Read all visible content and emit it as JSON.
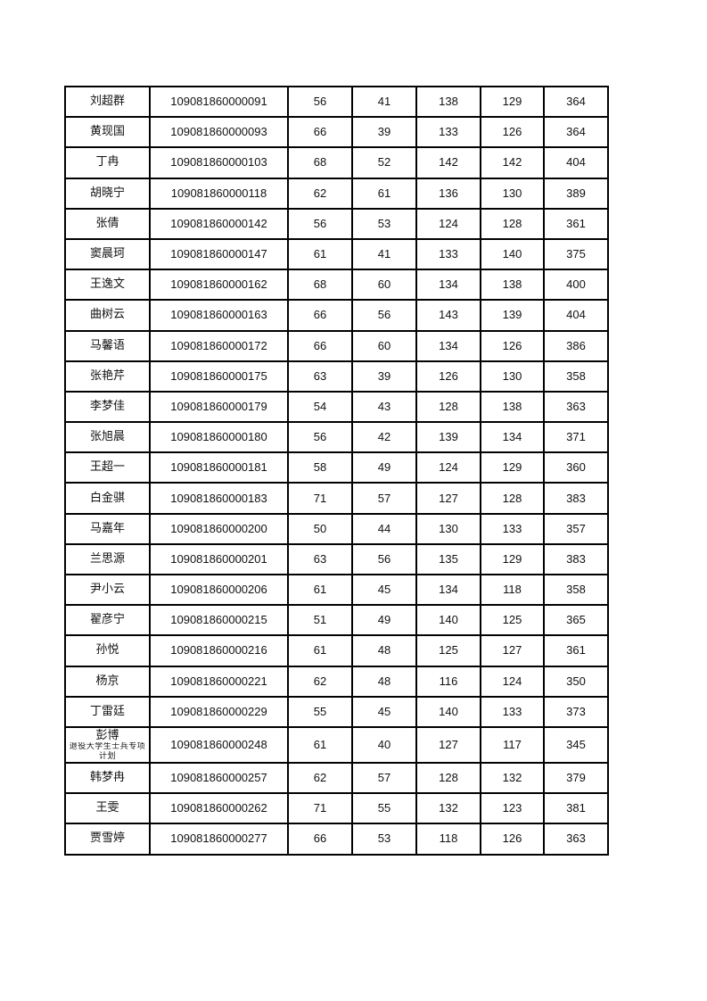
{
  "table": {
    "rows": [
      {
        "name": "刘超群",
        "id": "109081860000091",
        "s1": "56",
        "s2": "41",
        "s3": "138",
        "s4": "129",
        "total": "364"
      },
      {
        "name": "黄现国",
        "id": "109081860000093",
        "s1": "66",
        "s2": "39",
        "s3": "133",
        "s4": "126",
        "total": "364"
      },
      {
        "name": "丁冉",
        "id": "109081860000103",
        "s1": "68",
        "s2": "52",
        "s3": "142",
        "s4": "142",
        "total": "404"
      },
      {
        "name": "胡晓宁",
        "id": "109081860000118",
        "s1": "62",
        "s2": "61",
        "s3": "136",
        "s4": "130",
        "total": "389"
      },
      {
        "name": "张倩",
        "id": "109081860000142",
        "s1": "56",
        "s2": "53",
        "s3": "124",
        "s4": "128",
        "total": "361"
      },
      {
        "name": "窦晨珂",
        "id": "109081860000147",
        "s1": "61",
        "s2": "41",
        "s3": "133",
        "s4": "140",
        "total": "375"
      },
      {
        "name": "王逸文",
        "id": "109081860000162",
        "s1": "68",
        "s2": "60",
        "s3": "134",
        "s4": "138",
        "total": "400"
      },
      {
        "name": "曲树云",
        "id": "109081860000163",
        "s1": "66",
        "s2": "56",
        "s3": "143",
        "s4": "139",
        "total": "404"
      },
      {
        "name": "马馨语",
        "id": "109081860000172",
        "s1": "66",
        "s2": "60",
        "s3": "134",
        "s4": "126",
        "total": "386"
      },
      {
        "name": "张艳芹",
        "id": "109081860000175",
        "s1": "63",
        "s2": "39",
        "s3": "126",
        "s4": "130",
        "total": "358"
      },
      {
        "name": "李梦佳",
        "id": "109081860000179",
        "s1": "54",
        "s2": "43",
        "s3": "128",
        "s4": "138",
        "total": "363"
      },
      {
        "name": "张旭晨",
        "id": "109081860000180",
        "s1": "56",
        "s2": "42",
        "s3": "139",
        "s4": "134",
        "total": "371"
      },
      {
        "name": "王超一",
        "id": "109081860000181",
        "s1": "58",
        "s2": "49",
        "s3": "124",
        "s4": "129",
        "total": "360"
      },
      {
        "name": "白金骐",
        "id": "109081860000183",
        "s1": "71",
        "s2": "57",
        "s3": "127",
        "s4": "128",
        "total": "383"
      },
      {
        "name": "马嘉年",
        "id": "109081860000200",
        "s1": "50",
        "s2": "44",
        "s3": "130",
        "s4": "133",
        "total": "357"
      },
      {
        "name": "兰思源",
        "id": "109081860000201",
        "s1": "63",
        "s2": "56",
        "s3": "135",
        "s4": "129",
        "total": "383"
      },
      {
        "name": "尹小云",
        "id": "109081860000206",
        "s1": "61",
        "s2": "45",
        "s3": "134",
        "s4": "118",
        "total": "358"
      },
      {
        "name": "翟彦宁",
        "id": "109081860000215",
        "s1": "51",
        "s2": "49",
        "s3": "140",
        "s4": "125",
        "total": "365"
      },
      {
        "name": "孙悦",
        "id": "109081860000216",
        "s1": "61",
        "s2": "48",
        "s3": "125",
        "s4": "127",
        "total": "361"
      },
      {
        "name": "杨京",
        "id": "109081860000221",
        "s1": "62",
        "s2": "48",
        "s3": "116",
        "s4": "124",
        "total": "350"
      },
      {
        "name": "丁雷廷",
        "id": "109081860000229",
        "s1": "55",
        "s2": "45",
        "s3": "140",
        "s4": "133",
        "total": "373"
      },
      {
        "name": "彭博",
        "note": "退役大学生士兵专项计划",
        "id": "109081860000248",
        "s1": "61",
        "s2": "40",
        "s3": "127",
        "s4": "117",
        "total": "345"
      },
      {
        "name": "韩梦冉",
        "id": "109081860000257",
        "s1": "62",
        "s2": "57",
        "s3": "128",
        "s4": "132",
        "total": "379"
      },
      {
        "name": "王雯",
        "id": "109081860000262",
        "s1": "71",
        "s2": "55",
        "s3": "132",
        "s4": "123",
        "total": "381"
      },
      {
        "name": "贾雪婷",
        "id": "109081860000277",
        "s1": "66",
        "s2": "53",
        "s3": "118",
        "s4": "126",
        "total": "363"
      }
    ]
  }
}
